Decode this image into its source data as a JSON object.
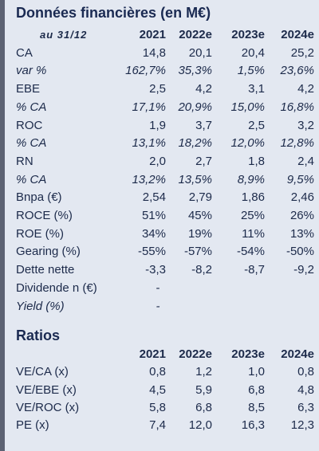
{
  "title": "Données financières (en M€)",
  "date_label": "au 31/12",
  "years": [
    "2021",
    "2022e",
    "2023e",
    "2024e"
  ],
  "rows": [
    {
      "label": "CA",
      "italic": false,
      "values": [
        "14,8",
        "20,1",
        "20,4",
        "25,2"
      ]
    },
    {
      "label": "var %",
      "italic": true,
      "values": [
        "162,7%",
        "35,3%",
        "1,5%",
        "23,6%"
      ]
    },
    {
      "label": "EBE",
      "italic": false,
      "values": [
        "2,5",
        "4,2",
        "3,1",
        "4,2"
      ]
    },
    {
      "label": "% CA",
      "italic": true,
      "values": [
        "17,1%",
        "20,9%",
        "15,0%",
        "16,8%"
      ]
    },
    {
      "label": "ROC",
      "italic": false,
      "values": [
        "1,9",
        "3,7",
        "2,5",
        "3,2"
      ]
    },
    {
      "label": "% CA",
      "italic": true,
      "values": [
        "13,1%",
        "18,2%",
        "12,0%",
        "12,8%"
      ]
    },
    {
      "label": "RN",
      "italic": false,
      "values": [
        "2,0",
        "2,7",
        "1,8",
        "2,4"
      ]
    },
    {
      "label": "% CA",
      "italic": true,
      "values": [
        "13,2%",
        "13,5%",
        "8,9%",
        "9,5%"
      ]
    },
    {
      "label": "Bnpa (€)",
      "italic": false,
      "values": [
        "2,54",
        "2,79",
        "1,86",
        "2,46"
      ]
    },
    {
      "label": "ROCE (%)",
      "italic": false,
      "values": [
        "51%",
        "45%",
        "25%",
        "26%"
      ]
    },
    {
      "label": "ROE (%)",
      "italic": false,
      "values": [
        "34%",
        "19%",
        "11%",
        "13%"
      ]
    },
    {
      "label": "Gearing (%)",
      "italic": false,
      "values": [
        "-55%",
        "-57%",
        "-54%",
        "-50%"
      ]
    },
    {
      "label": "Dette nette",
      "italic": false,
      "values": [
        "-3,3",
        "-8,2",
        "-8,7",
        "-9,2"
      ]
    },
    {
      "label": "Dividende n (€)",
      "italic": false,
      "values": [
        "-",
        "",
        "",
        ""
      ]
    },
    {
      "label": "Yield (%)",
      "italic": true,
      "values": [
        "-",
        "",
        "",
        ""
      ]
    }
  ],
  "ratios_title": "Ratios",
  "ratio_years": [
    "2021",
    "2022e",
    "2023e",
    "2024e"
  ],
  "ratio_rows": [
    {
      "label": "VE/CA (x)",
      "values": [
        "0,8",
        "1,2",
        "1,0",
        "0,8"
      ]
    },
    {
      "label": "VE/EBE (x)",
      "values": [
        "4,5",
        "5,9",
        "6,8",
        "4,8"
      ]
    },
    {
      "label": "VE/ROC (x)",
      "values": [
        "5,8",
        "6,8",
        "8,5",
        "6,3"
      ]
    },
    {
      "label": "PE (x)",
      "values": [
        "7,4",
        "12,0",
        "16,3",
        "12,3"
      ]
    }
  ]
}
